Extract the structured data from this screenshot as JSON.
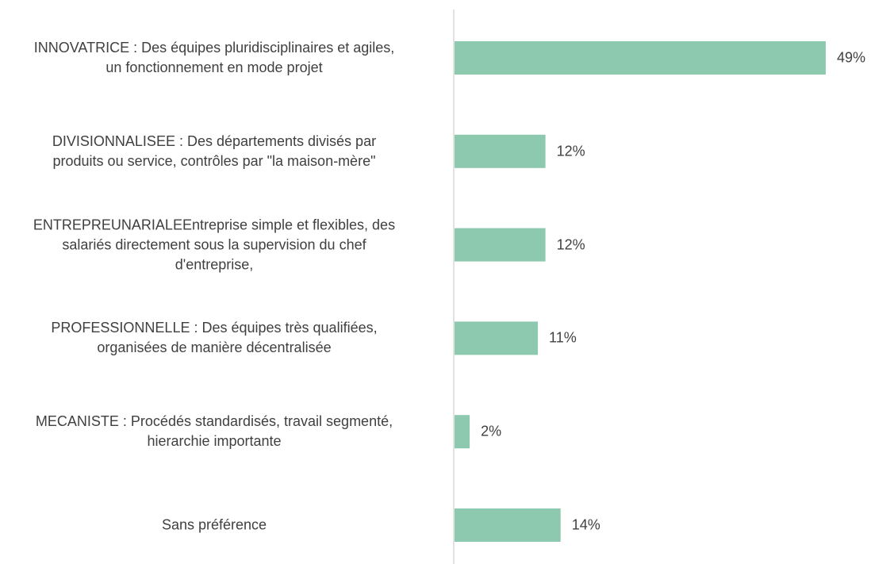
{
  "chart_data": {
    "type": "bar",
    "orientation": "horizontal",
    "categories": [
      "INNOVATRICE : Des équipes pluridisciplinaires et agiles,\nun fonctionnement en mode projet",
      "DIVISIONNALISEE : Des départements divisés par\nproduits ou service, contrôles par \"la maison-mère\"",
      "ENTREPREUNARIALEEntreprise simple et flexibles, des\nsalariés directement sous la supervision du chef\nd'entreprise,",
      "PROFESSIONNELLE : Des équipes très qualifiées,\norganisées de manière décentralisée",
      "MECANISTE : Procédés standardisés, travail segmenté,\nhierarchie importante",
      "Sans préférence"
    ],
    "values": [
      49,
      12,
      12,
      11,
      2,
      14
    ],
    "value_labels": [
      "49%",
      "12%",
      "12%",
      "11%",
      "2%",
      "14%"
    ],
    "color": "#8dc9ae"
  }
}
